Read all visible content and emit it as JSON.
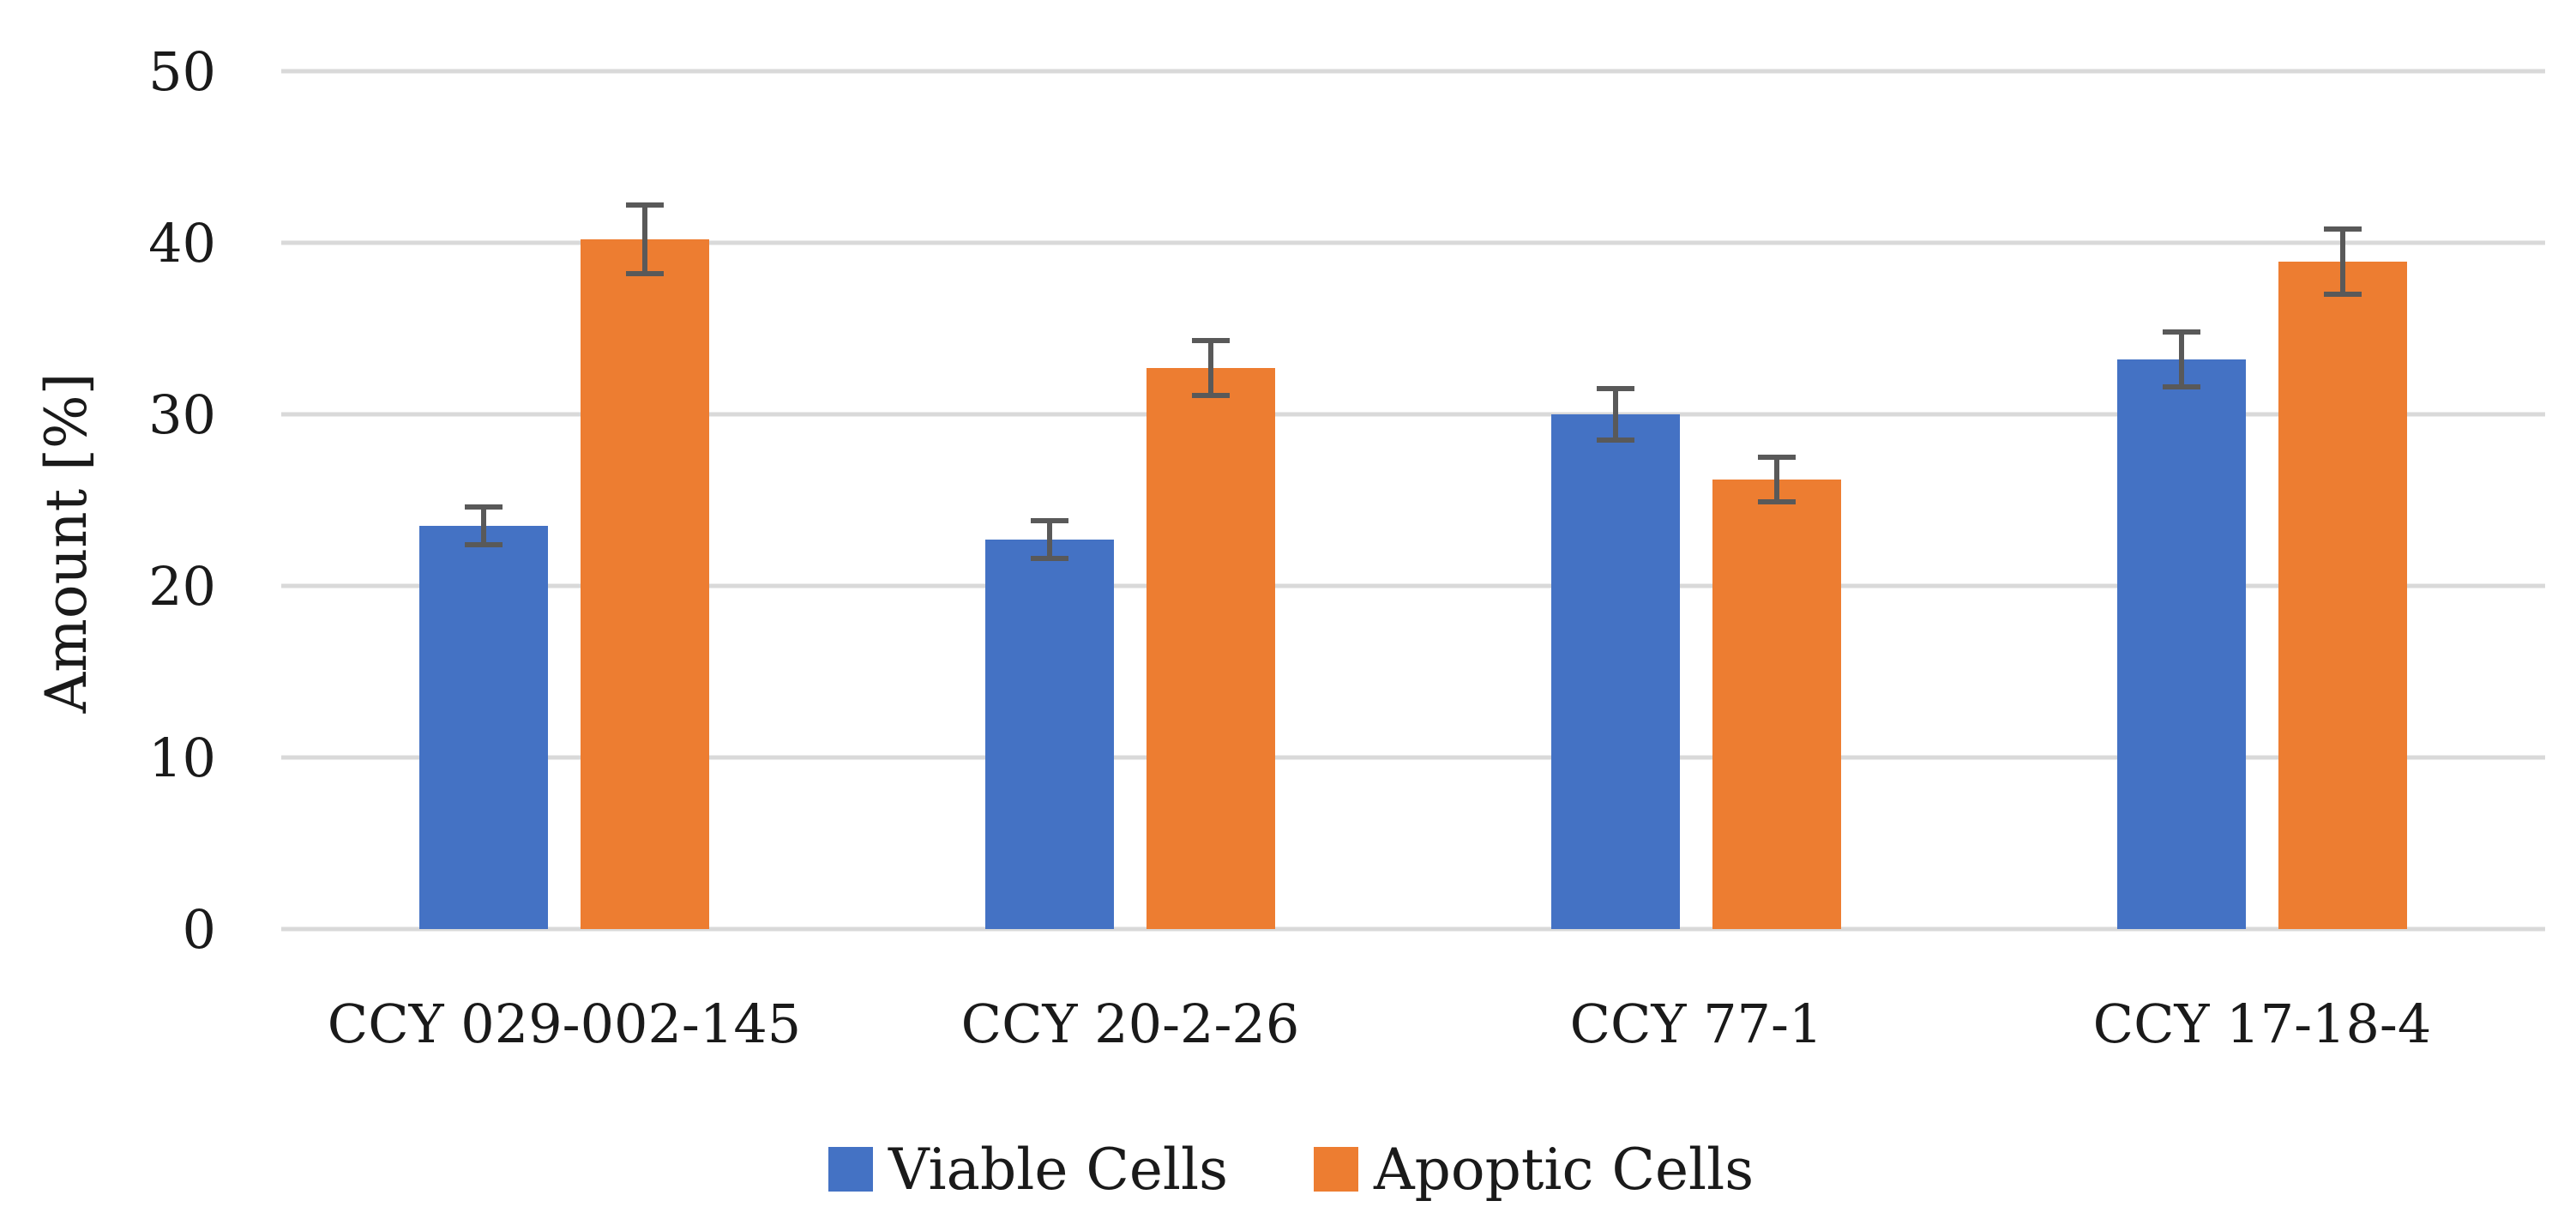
{
  "chart_data": {
    "type": "bar",
    "title": "",
    "xlabel": "",
    "ylabel": "Amount [%]",
    "ylim": [
      0,
      50
    ],
    "yticks": [
      0,
      10,
      20,
      30,
      40,
      50
    ],
    "grid": true,
    "legend_position": "bottom",
    "categories": [
      "CCY 029-002-145",
      "CCY 20-2-26",
      "CCY 77-1",
      "CCY 17-18-4"
    ],
    "series": [
      {
        "name": "Viable Cells",
        "color": "#4472C4",
        "values": [
          23.5,
          22.7,
          30.0,
          33.2
        ],
        "errors": [
          1.1,
          1.1,
          1.5,
          1.6
        ]
      },
      {
        "name": "Apoptic Cells",
        "color": "#ED7D31",
        "values": [
          40.2,
          32.7,
          26.2,
          38.9
        ],
        "errors": [
          2.0,
          1.6,
          1.3,
          1.9
        ]
      }
    ],
    "colors": {
      "grid": "#D9D9D9",
      "error_bar": "#595959",
      "text": "#1a1a1a"
    }
  }
}
